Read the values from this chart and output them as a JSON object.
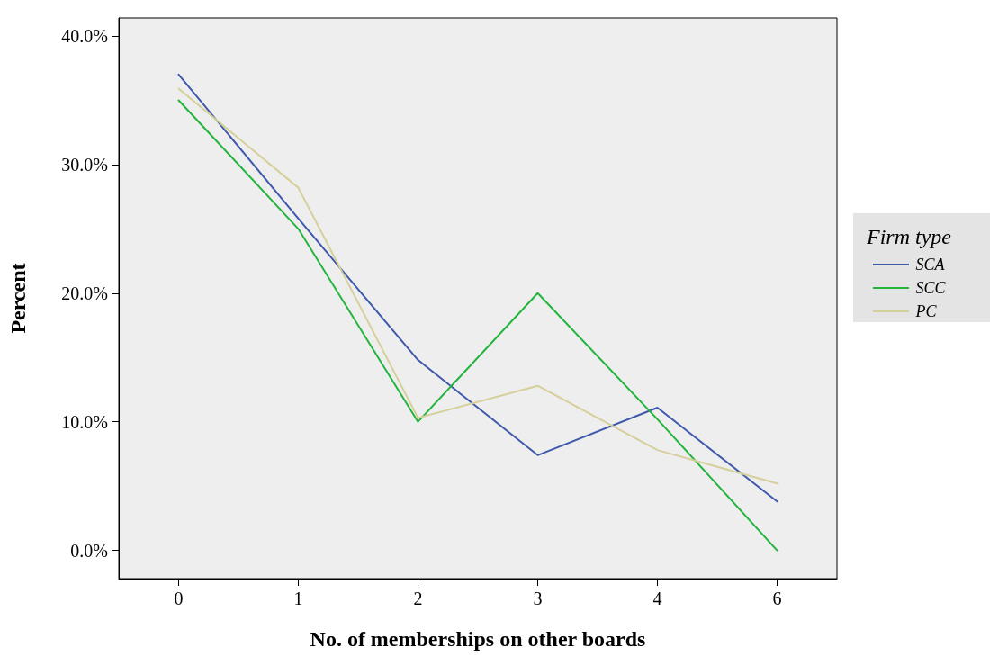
{
  "chart_data": {
    "type": "line",
    "xlabel": "No. of memberships on other boards",
    "ylabel": "Percent",
    "legend_title": "Firm type",
    "categories": [
      "0",
      "1",
      "2",
      "3",
      "4",
      "6"
    ],
    "series": [
      {
        "name": "SCA",
        "color": "#3e58ac",
        "values": [
          37.0,
          25.8,
          14.8,
          7.4,
          11.1,
          3.8
        ]
      },
      {
        "name": "SCC",
        "color": "#22b43c",
        "values": [
          35.0,
          25.0,
          10.0,
          20.0,
          10.2,
          0.0
        ]
      },
      {
        "name": "PC",
        "color": "#d5d09a",
        "values": [
          35.9,
          28.2,
          10.3,
          12.8,
          7.8,
          5.2
        ]
      }
    ],
    "ylim": [
      -2.2,
      41.4
    ],
    "yticks": [
      {
        "value": 0,
        "label": "0.0%"
      },
      {
        "value": 10,
        "label": "10.0%"
      },
      {
        "value": 20,
        "label": "20.0%"
      },
      {
        "value": 30,
        "label": "30.0%"
      },
      {
        "value": 40,
        "label": "40.0%"
      }
    ],
    "grid": false,
    "legend": "right",
    "marker": "none",
    "line_style": "solid"
  }
}
